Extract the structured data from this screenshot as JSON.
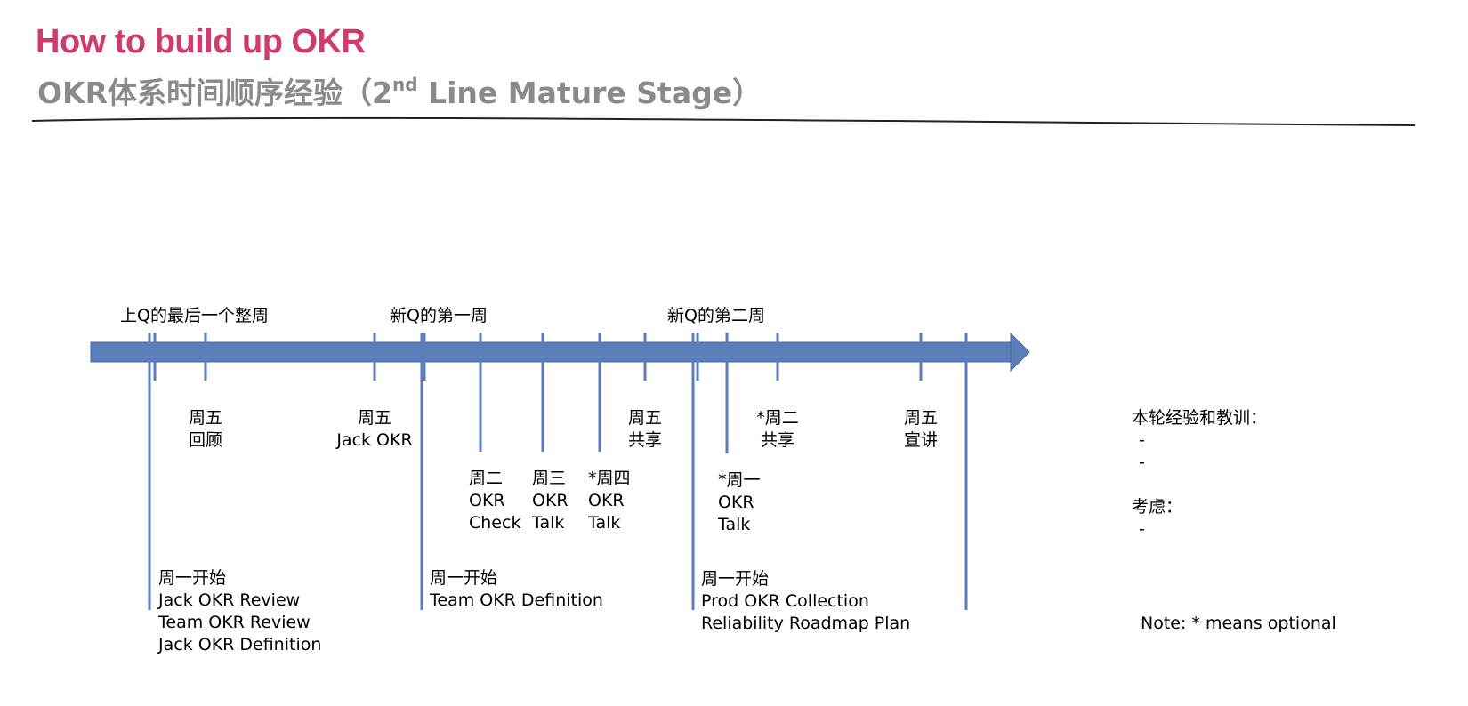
{
  "header": {
    "title": "How to build up OKR",
    "subtitle_prefix": "OKR体系时间顺序经验（2",
    "subtitle_sup": "nd",
    "subtitle_suffix": " Line Mature Stage）"
  },
  "colors": {
    "title": "#d13a6d",
    "subtitle": "#8a8a8a",
    "timeline": "#5b7fba"
  },
  "weeks": {
    "last_q_final_week": "上Q的最后一个整周",
    "new_q_week1": "新Q的第一周",
    "new_q_week2": "新Q的第二周"
  },
  "events": {
    "fri_review": [
      "周五",
      "回顾"
    ],
    "fri_jack_okr": [
      "周五",
      "Jack OKR"
    ],
    "tue_okr_check": [
      "周二",
      "OKR",
      "Check"
    ],
    "wed_okr_talk": [
      "周三",
      "OKR",
      "Talk"
    ],
    "thu_okr_talk": [
      "*周四",
      "OKR",
      "Talk"
    ],
    "fri_share": [
      "周五",
      "共享"
    ],
    "mon_okr_talk": [
      "*周一",
      "OKR",
      "Talk"
    ],
    "tue_share": [
      "*周二",
      "共享"
    ],
    "fri_announce": [
      "周五",
      "宣讲"
    ],
    "mon_start_1": [
      "周一开始",
      "Jack OKR Review",
      "Team OKR Review",
      "Jack OKR Definition"
    ],
    "mon_start_2": [
      "周一开始",
      "Team OKR Definition"
    ],
    "mon_start_3": [
      "周一开始",
      "Prod OKR Collection",
      "Reliability Roadmap Plan"
    ]
  },
  "lessons": {
    "heading": "本轮经验和教训：",
    "items": [
      "-",
      "-"
    ],
    "consider_heading": "考虑：",
    "consider_items": [
      "-"
    ]
  },
  "note": "Note: * means optional"
}
